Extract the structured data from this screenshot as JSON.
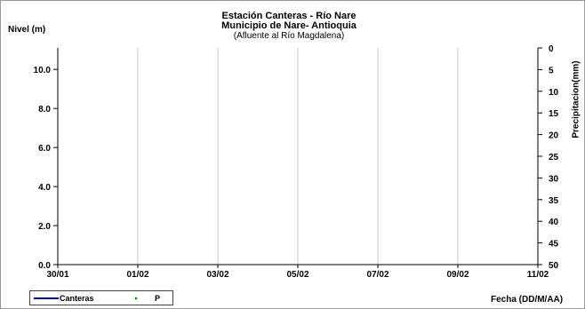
{
  "chart_data": {
    "type": "line",
    "title": [
      "Estación Canteras - Río Nare",
      "Municipio de Nare- Antioquia",
      "(Afluente al Río Magdalena)"
    ],
    "ylabel": "Nivel (m)",
    "y2label": "Precipitacion(mm)",
    "xlabel": "Fecha (DD/M/AA)",
    "x_ticks": [
      "30/01",
      "01/02",
      "03/02",
      "05/02",
      "07/02",
      "09/02",
      "11/02"
    ],
    "y_ticks": [
      "0.0",
      "2.0",
      "4.0",
      "6.0",
      "8.0",
      "10.0"
    ],
    "y_values": [
      0,
      2,
      4,
      6,
      8,
      10
    ],
    "ylim": [
      0,
      11.1
    ],
    "y2_ticks": [
      "0",
      "5",
      "10",
      "15",
      "20",
      "25",
      "30",
      "35",
      "40",
      "45",
      "50"
    ],
    "y2_values": [
      0,
      5,
      10,
      15,
      20,
      25,
      30,
      35,
      40,
      45,
      50
    ],
    "y2lim": [
      0,
      50
    ],
    "y2_inverted": true,
    "grid": "vertical",
    "legend_position": "bottom-left",
    "series": [
      {
        "name": "Canteras",
        "color": "#0000cc",
        "style": "line",
        "values": []
      },
      {
        "name": "P",
        "color": "#008000",
        "style": "marker",
        "values": []
      }
    ]
  }
}
